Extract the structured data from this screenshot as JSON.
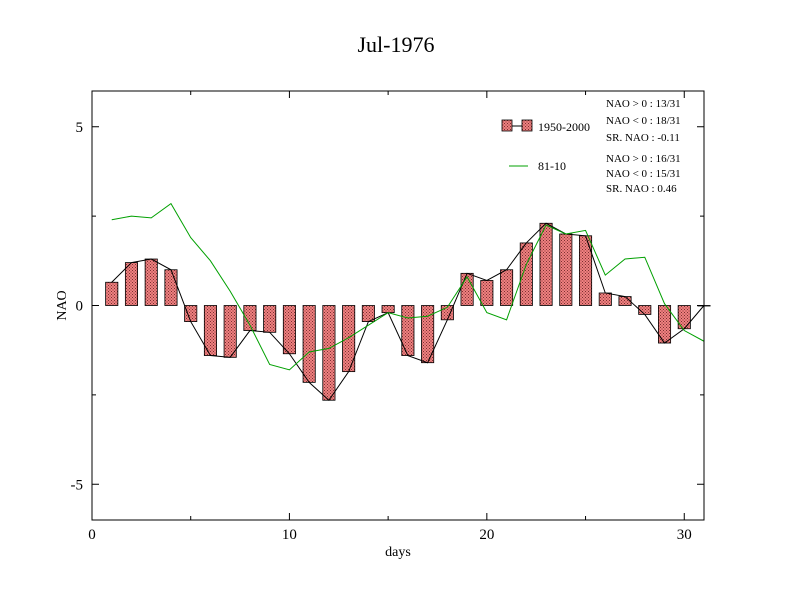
{
  "chart_data": {
    "type": "bar",
    "title": "Jul-1976",
    "xlabel": "days",
    "ylabel": "NAO",
    "xlim": [
      0,
      31
    ],
    "ylim": [
      -6,
      6
    ],
    "xticks": [
      0,
      10,
      20,
      30
    ],
    "yticks": [
      -5,
      0,
      5
    ],
    "x": [
      1,
      2,
      3,
      4,
      5,
      6,
      7,
      8,
      9,
      10,
      11,
      12,
      13,
      14,
      15,
      16,
      17,
      18,
      19,
      20,
      21,
      22,
      23,
      24,
      25,
      26,
      27,
      28,
      29,
      30,
      31
    ],
    "series": [
      {
        "name": "1950-2000",
        "kind": "bar",
        "color": "#f08080",
        "values": [
          0.65,
          1.2,
          1.3,
          1.0,
          -0.45,
          -1.4,
          -1.45,
          -0.7,
          -0.75,
          -1.35,
          -2.15,
          -2.65,
          -1.85,
          -0.45,
          -0.2,
          -1.4,
          -1.6,
          -0.4,
          0.9,
          0.7,
          1.0,
          1.75,
          2.3,
          2.0,
          1.95,
          0.35,
          0.25,
          -0.25,
          -1.05,
          -0.65,
          0.0
        ]
      },
      {
        "name": "81-10",
        "kind": "line",
        "color": "#00a000",
        "values": [
          2.4,
          2.5,
          2.45,
          2.85,
          1.9,
          1.25,
          0.4,
          -0.55,
          -1.65,
          -1.8,
          -1.3,
          -1.2,
          -0.9,
          -0.55,
          -0.2,
          -0.35,
          -0.3,
          -0.05,
          0.8,
          -0.2,
          -0.4,
          1.15,
          2.25,
          2.0,
          2.1,
          0.85,
          1.3,
          1.35,
          0.05,
          -0.7,
          -1.0
        ]
      }
    ],
    "legend_position": "top-right",
    "stats": [
      [
        "NAO > 0 : 13/31",
        "NAO < 0 : 18/31",
        "SR. NAO : -0.11"
      ],
      [
        "NAO > 0 : 16/31",
        "NAO < 0 : 15/31",
        "SR. NAO :  0.46"
      ]
    ]
  }
}
